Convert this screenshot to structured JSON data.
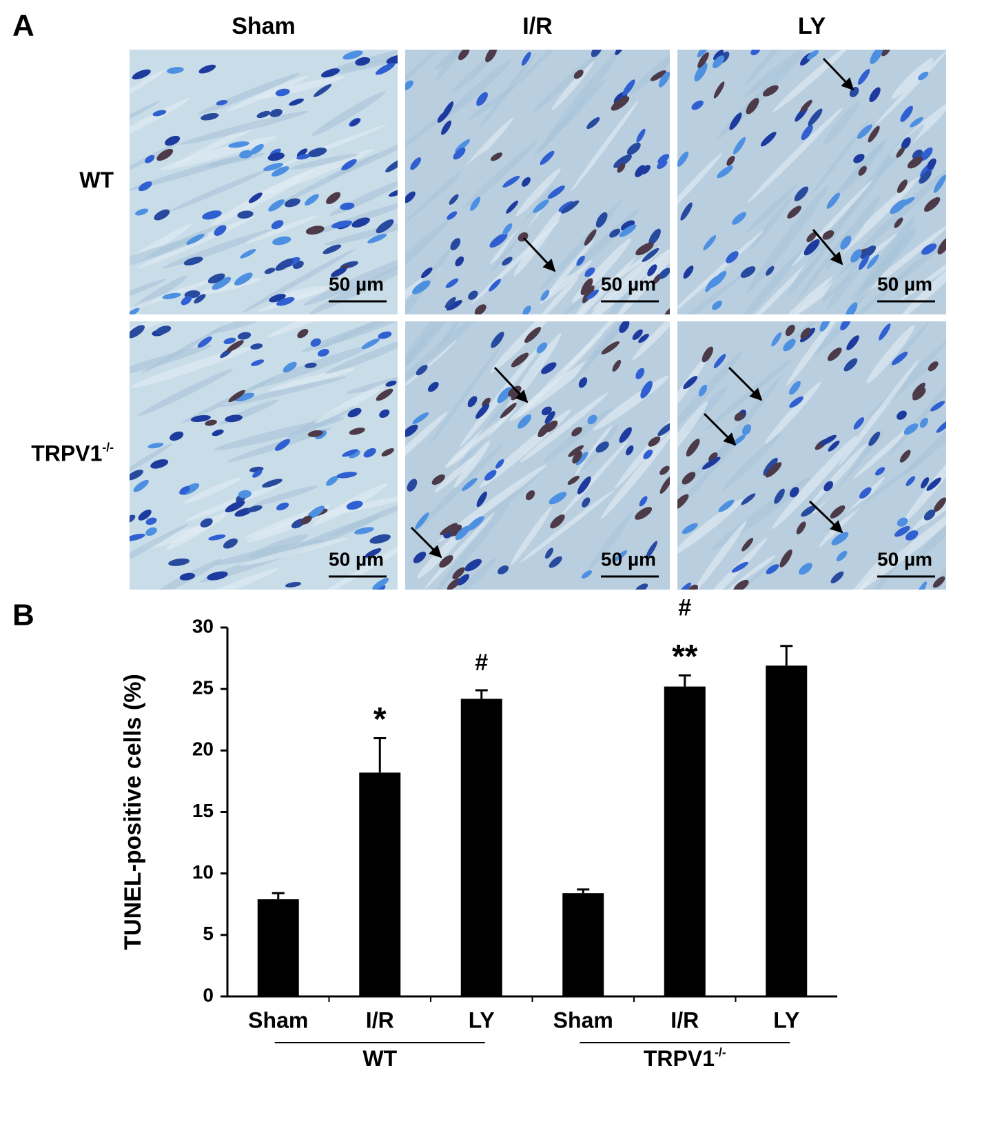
{
  "panel_a": {
    "label": "A",
    "columns": [
      "Sham",
      "I/R",
      "LY"
    ],
    "rows": [
      {
        "text": "WT"
      },
      {
        "text": "TRPV1",
        "sup": "-/-"
      }
    ],
    "scale_bars": [
      [
        "50 µm",
        "50 µm",
        "50 µm"
      ],
      [
        "50 µm",
        "50 µm",
        "50 µm"
      ]
    ]
  },
  "chart_data": {
    "type": "bar",
    "label": "B",
    "y_label": "TUNEL-positive cells (%)",
    "categories": [
      "Sham",
      "I/R",
      "LY",
      "Sham",
      "I/R",
      "LY"
    ],
    "values": [
      7.9,
      18.2,
      24.2,
      8.4,
      25.2,
      26.9
    ],
    "errors": [
      0.5,
      2.8,
      0.7,
      0.3,
      0.9,
      1.6
    ],
    "annotations": [
      [],
      [
        "*"
      ],
      [
        "#"
      ],
      [],
      [
        "#",
        "**"
      ],
      []
    ],
    "groups": [
      {
        "text": "WT"
      },
      {
        "text": "TRPV1",
        "sup": "-/-"
      }
    ],
    "color": "#000000",
    "ylim": [
      0,
      30
    ],
    "yticks": [
      0,
      5,
      10,
      15,
      20,
      25,
      30
    ]
  }
}
